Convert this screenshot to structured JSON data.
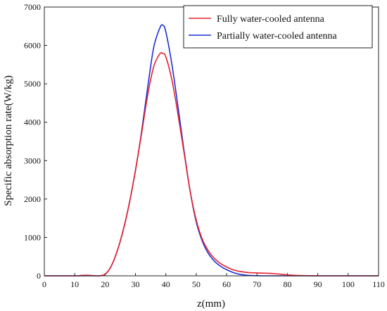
{
  "chart_data": {
    "type": "line",
    "title": "",
    "xlabel": "z(mm)",
    "ylabel": "Specific absorption rate(W/kg)",
    "xlim": [
      0,
      110
    ],
    "ylim": [
      0,
      7000
    ],
    "xticks": [
      0,
      10,
      20,
      30,
      40,
      50,
      60,
      70,
      80,
      90,
      100,
      110
    ],
    "yticks": [
      0,
      1000,
      2000,
      3000,
      4000,
      5000,
      6000,
      7000
    ],
    "grid": false,
    "legend_position": "top-right",
    "series": [
      {
        "name": "Fully water-cooled antenna",
        "color": "#e8202a",
        "x": [
          0,
          10,
          12,
          14,
          16,
          18,
          20,
          22,
          24,
          26,
          28,
          30,
          32,
          34,
          36,
          38,
          39,
          40,
          42,
          44,
          46,
          48,
          50,
          52,
          54,
          56,
          58,
          60,
          62,
          64,
          66,
          68,
          70,
          72,
          74,
          76,
          78,
          80,
          82,
          84,
          86,
          88,
          90,
          100,
          110
        ],
        "y": [
          0,
          0,
          10,
          15,
          5,
          0,
          40,
          250,
          650,
          1200,
          1900,
          2750,
          3700,
          4700,
          5450,
          5780,
          5790,
          5700,
          5100,
          4200,
          3200,
          2200,
          1450,
          950,
          650,
          450,
          320,
          230,
          160,
          120,
          95,
          80,
          75,
          70,
          65,
          55,
          40,
          25,
          15,
          8,
          5,
          2,
          0,
          0,
          0
        ]
      },
      {
        "name": "Partially water-cooled antenna",
        "color": "#1a2fd6",
        "x": [
          0,
          10,
          12,
          14,
          16,
          18,
          20,
          22,
          24,
          26,
          28,
          30,
          32,
          34,
          36,
          38,
          39,
          40,
          42,
          44,
          46,
          48,
          50,
          52,
          54,
          56,
          58,
          60,
          62,
          64,
          66,
          68,
          70,
          72,
          74,
          76,
          78,
          80,
          82,
          84,
          86,
          88,
          90,
          100,
          110
        ],
        "y": [
          0,
          0,
          0,
          0,
          0,
          0,
          40,
          250,
          650,
          1200,
          1900,
          2750,
          3750,
          4900,
          5950,
          6450,
          6530,
          6350,
          5500,
          4400,
          3250,
          2200,
          1400,
          900,
          580,
          380,
          250,
          160,
          90,
          45,
          20,
          8,
          3,
          0,
          0,
          0,
          0,
          0,
          0,
          0,
          0,
          0,
          0,
          0,
          0
        ]
      }
    ]
  }
}
